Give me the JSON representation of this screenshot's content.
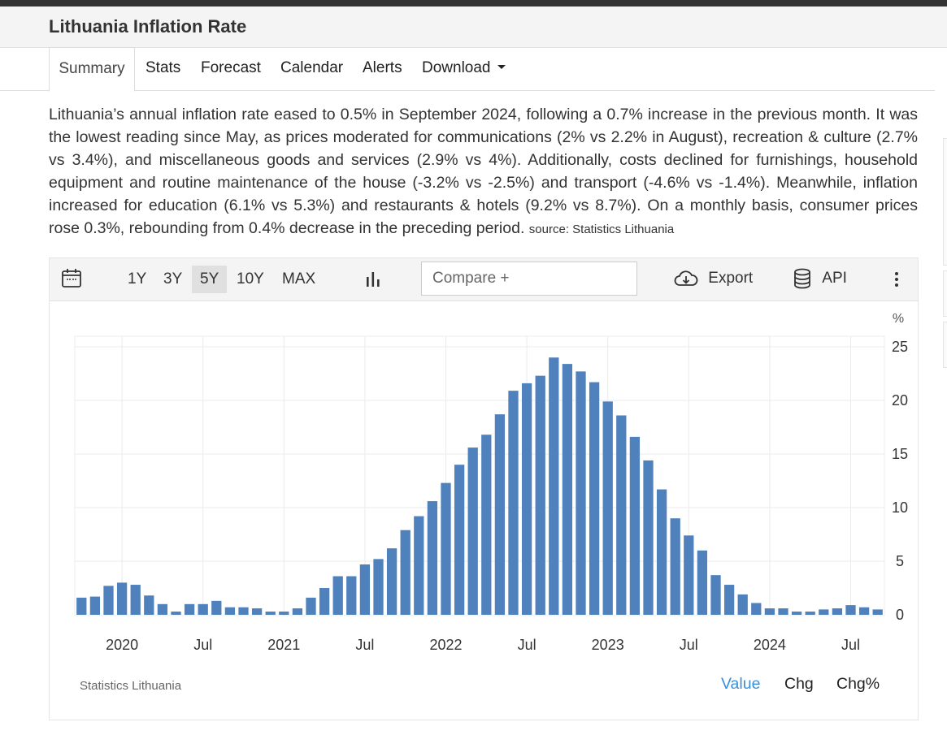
{
  "header": {
    "title": "Lithuania Inflation Rate"
  },
  "tabs": [
    {
      "label": "Summary"
    },
    {
      "label": "Stats"
    },
    {
      "label": "Forecast"
    },
    {
      "label": "Calendar"
    },
    {
      "label": "Alerts"
    },
    {
      "label": "Download"
    }
  ],
  "summary": {
    "text": "Lithuania’s annual inflation rate eased to 0.5% in September 2024, following a 0.7% increase in the previous month. It was the lowest reading since May, as prices moderated for communications (2% vs 2.2% in August), recreation & culture (2.7% vs 3.4%), and miscellaneous goods and services (2.9% vs 4%). Additionally, costs declined for furnishings, household equipment and routine maintenance of the house (-3.2% vs -2.5%) and transport (-4.6% vs -1.4%). Meanwhile, inflation increased for education (6.1% vs 5.3%) and restaurants & hotels (9.2% vs 8.7%). On a monthly basis, consumer prices rose 0.3%, rebounding from 0.4% decrease in the preceding period.",
    "source": "source: Statistics Lithuania"
  },
  "toolbar": {
    "calendar_icon": "calendar-icon",
    "periods": [
      "1Y",
      "3Y",
      "5Y",
      "10Y",
      "MAX"
    ],
    "active_period": "5Y",
    "chart_type_icon": "bar-chart-icon",
    "compare_placeholder": "Compare +",
    "export_label": "Export",
    "export_icon": "cloud-download-icon",
    "api_label": "API",
    "api_icon": "database-icon",
    "menu_icon": "vertical-dots-icon"
  },
  "chart_footer": {
    "source": "Statistics Lithuania",
    "value_tabs": [
      "Value",
      "Chg",
      "Chg%"
    ],
    "active_value_tab": "Value"
  },
  "colors": {
    "bar": "#4f81bd",
    "active_link": "#3a8fd9",
    "toolbar_bg": "#f4f4f4"
  },
  "chart_data": {
    "type": "bar",
    "unit": "%",
    "ylim": [
      0,
      25
    ],
    "yticks": [
      0,
      5,
      10,
      15,
      20,
      25
    ],
    "grid": true,
    "x_tick_labels": [
      "2020",
      "Jul",
      "2021",
      "Jul",
      "2022",
      "Jul",
      "2023",
      "Jul",
      "2024",
      "Jul"
    ],
    "x_tick_months": [
      "2020-01",
      "2020-07",
      "2021-01",
      "2021-07",
      "2022-01",
      "2022-07",
      "2023-01",
      "2023-07",
      "2024-01",
      "2024-07"
    ],
    "categories": [
      "2019-10",
      "2019-11",
      "2019-12",
      "2020-01",
      "2020-02",
      "2020-03",
      "2020-04",
      "2020-05",
      "2020-06",
      "2020-07",
      "2020-08",
      "2020-09",
      "2020-10",
      "2020-11",
      "2020-12",
      "2021-01",
      "2021-02",
      "2021-03",
      "2021-04",
      "2021-05",
      "2021-06",
      "2021-07",
      "2021-08",
      "2021-09",
      "2021-10",
      "2021-11",
      "2021-12",
      "2022-01",
      "2022-02",
      "2022-03",
      "2022-04",
      "2022-05",
      "2022-06",
      "2022-07",
      "2022-08",
      "2022-09",
      "2022-10",
      "2022-11",
      "2022-12",
      "2023-01",
      "2023-02",
      "2023-03",
      "2023-04",
      "2023-05",
      "2023-06",
      "2023-07",
      "2023-08",
      "2023-09",
      "2023-10",
      "2023-11",
      "2023-12",
      "2024-01",
      "2024-02",
      "2024-03",
      "2024-04",
      "2024-05",
      "2024-06",
      "2024-07",
      "2024-08",
      "2024-09"
    ],
    "values": [
      1.6,
      1.7,
      2.7,
      3.0,
      2.8,
      1.8,
      1.0,
      0.3,
      1.0,
      1.0,
      1.3,
      0.7,
      0.7,
      0.6,
      0.3,
      0.3,
      0.6,
      1.6,
      2.5,
      3.6,
      3.6,
      4.7,
      5.2,
      6.2,
      7.9,
      9.2,
      10.6,
      12.3,
      14.0,
      15.6,
      16.8,
      18.7,
      20.9,
      21.6,
      22.3,
      24.0,
      23.4,
      22.7,
      21.7,
      19.9,
      18.6,
      16.6,
      14.4,
      11.7,
      9.0,
      7.4,
      6.0,
      3.7,
      2.8,
      1.9,
      1.1,
      0.6,
      0.6,
      0.3,
      0.3,
      0.5,
      0.6,
      0.9,
      0.7,
      0.5
    ]
  }
}
